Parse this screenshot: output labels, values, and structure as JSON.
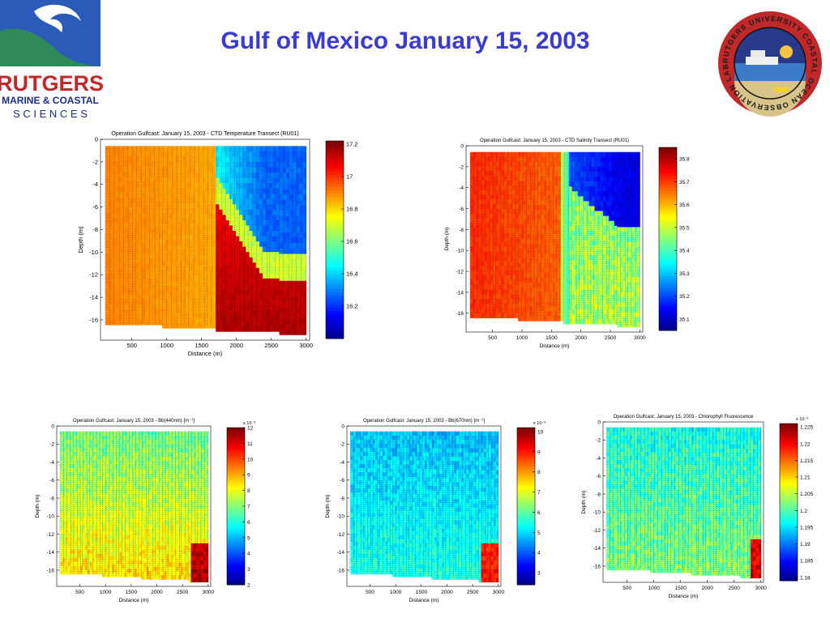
{
  "page": {
    "title": "Gulf of Mexico January 15, 2003",
    "left_logo": {
      "line1": "RUTGERS",
      "line2": "MARINE & COASTAL",
      "line3": "S C I E N C E S",
      "wave_color": "#2a5bb8",
      "hill_color": "#2e8b57"
    },
    "right_logo": {
      "ring_text": "RUTGERS UNIVERSITY  COASTAL OCEAN OBSERVATION LAB",
      "ring_color": "#c0282a"
    }
  },
  "chart_data": [
    {
      "type": "heatmap",
      "title": "Operation Gulfcast: January 15, 2003 - CTD Temperature Transect (RU01)",
      "xlabel": "Distance (m)",
      "ylabel": "Depth (m)",
      "xticks": [
        500,
        1000,
        1500,
        2000,
        2500,
        3000
      ],
      "yticks": [
        0,
        -2,
        -4,
        -6,
        -8,
        -10,
        -12,
        -14,
        -16
      ],
      "xlim": [
        50,
        3050
      ],
      "ylim": [
        -17.8,
        0
      ],
      "colorbar": {
        "ticks": [
          17.2,
          17,
          16.8,
          16.6,
          16.4,
          16.2
        ],
        "min": 16.0,
        "max": 17.22
      },
      "colorbar_exponent": "",
      "field": "temperature"
    },
    {
      "type": "heatmap",
      "title": "Operation Gulfcast: January 15, 2003 - CTD Salinity Transect (RU01)",
      "xlabel": "Distance (m)",
      "ylabel": "Depth (m)",
      "xticks": [
        500,
        1000,
        1500,
        2000,
        2500,
        3000
      ],
      "yticks": [
        0,
        -2,
        -4,
        -6,
        -8,
        -10,
        -12,
        -14,
        -16
      ],
      "xlim": [
        50,
        3050
      ],
      "ylim": [
        -17.8,
        0
      ],
      "colorbar": {
        "ticks": [
          35.8,
          35.7,
          35.6,
          35.5,
          35.4,
          35.3,
          35.2,
          35.1
        ],
        "min": 35.05,
        "max": 35.85
      },
      "colorbar_exponent": "",
      "field": "salinity"
    },
    {
      "type": "heatmap",
      "title": "Operation Gulfcast: January 15, 2003 - Bb(440nm) [m⁻¹]",
      "xlabel": "Distance (m)",
      "ylabel": "Depth (m)",
      "xticks": [
        500,
        1000,
        1500,
        2000,
        2500,
        3000
      ],
      "yticks": [
        0,
        -2,
        -4,
        -6,
        -8,
        -10,
        -12,
        -14,
        -16
      ],
      "xlim": [
        50,
        3050
      ],
      "ylim": [
        -17.8,
        0
      ],
      "colorbar": {
        "ticks": [
          12,
          11,
          10,
          9,
          8,
          7,
          6,
          5,
          4,
          3,
          2
        ],
        "min": 2,
        "max": 12
      },
      "colorbar_exponent": "x 10⁻³",
      "field": "bb440"
    },
    {
      "type": "heatmap",
      "title": "Operation Gulfcast: January 15, 2003 - Bb(670nm) [m⁻¹]",
      "xlabel": "Distance (m)",
      "ylabel": "Depth (m)",
      "xticks": [
        500,
        1000,
        1500,
        2000,
        2500,
        3000
      ],
      "yticks": [
        0,
        -2,
        -4,
        -6,
        -8,
        -10,
        -12,
        -14,
        -16
      ],
      "xlim": [
        50,
        3050
      ],
      "ylim": [
        -17.8,
        0
      ],
      "colorbar": {
        "ticks": [
          10,
          9,
          8,
          7,
          6,
          5,
          4,
          3
        ],
        "min": 2.4,
        "max": 10.2
      },
      "colorbar_exponent": "x 10⁻³",
      "field": "bb670"
    },
    {
      "type": "heatmap",
      "title": "Operation Gulfcast: January 15, 2003 - Chlorophyll Fluorescence",
      "xlabel": "Distance (m)",
      "ylabel": "Depth (m)",
      "xticks": [
        500,
        1000,
        1500,
        2000,
        2500,
        3000
      ],
      "yticks": [
        0,
        -2,
        -4,
        -6,
        -8,
        -10,
        -12,
        -14,
        -16
      ],
      "xlim": [
        50,
        3050
      ],
      "ylim": [
        -17.8,
        0
      ],
      "colorbar": {
        "ticks": [
          1.225,
          1.22,
          1.215,
          1.21,
          1.205,
          1.2,
          1.195,
          1.19,
          1.185,
          1.18
        ],
        "min": 1.179,
        "max": 1.226
      },
      "colorbar_exponent": "x 10⁻³",
      "field": "chl"
    }
  ]
}
